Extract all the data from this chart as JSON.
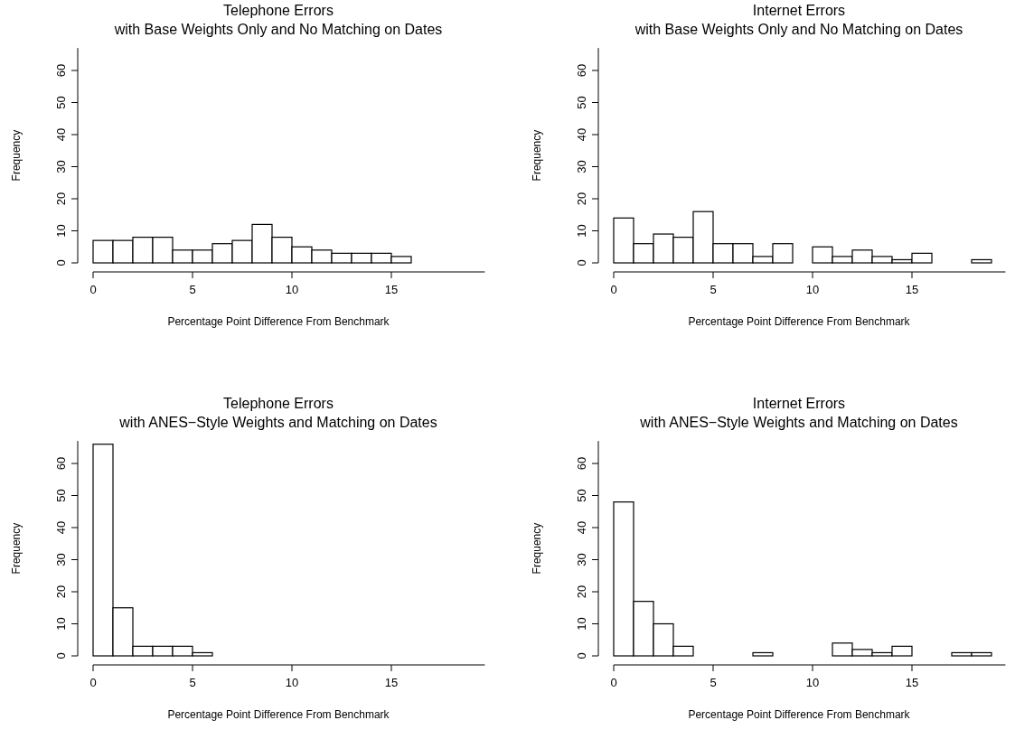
{
  "chart_data": [
    {
      "type": "histogram",
      "title": "Telephone Errors",
      "subtitle": "with Base Weights Only and No Matching on Dates",
      "xlabel": "Percentage Point Difference From Benchmark",
      "ylabel": "Frequency",
      "bins": [
        0,
        1,
        2,
        3,
        4,
        5,
        6,
        7,
        8,
        9,
        10,
        11,
        12,
        13,
        14,
        15,
        16
      ],
      "values": [
        7,
        7,
        8,
        8,
        4,
        4,
        6,
        7,
        12,
        8,
        5,
        4,
        3,
        3,
        3,
        2
      ],
      "color": "#ffffff",
      "xlim": [
        0,
        19.7
      ],
      "ylim": [
        0,
        67
      ],
      "xticks": [
        0,
        5,
        10,
        15
      ],
      "yticks": [
        0,
        10,
        20,
        30,
        40,
        50,
        60
      ]
    },
    {
      "type": "histogram",
      "title": "Internet Errors",
      "subtitle": "with Base Weights Only and No Matching on Dates",
      "xlabel": "Percentage Point Difference From Benchmark",
      "ylabel": "Frequency",
      "bins": [
        0,
        1,
        2,
        3,
        4,
        5,
        6,
        7,
        8,
        9,
        10,
        11,
        12,
        13,
        14,
        15,
        16,
        17,
        18,
        19
      ],
      "values": [
        14,
        6,
        9,
        8,
        16,
        6,
        6,
        2,
        6,
        0,
        5,
        2,
        4,
        2,
        1,
        3,
        0,
        0,
        1
      ],
      "color": "#ffffff",
      "xlim": [
        0,
        19.7
      ],
      "ylim": [
        0,
        67
      ],
      "xticks": [
        0,
        5,
        10,
        15
      ],
      "yticks": [
        0,
        10,
        20,
        30,
        40,
        50,
        60
      ]
    },
    {
      "type": "histogram",
      "title": "Telephone Errors",
      "subtitle": "with ANES−Style Weights and Matching on Dates",
      "xlabel": "Percentage Point Difference From Benchmark",
      "ylabel": "Frequency",
      "bins": [
        0,
        1,
        2,
        3,
        4,
        5,
        6
      ],
      "values": [
        66,
        15,
        3,
        3,
        3,
        1
      ],
      "color": "#ffffff",
      "xlim": [
        0,
        19.7
      ],
      "ylim": [
        0,
        67
      ],
      "xticks": [
        0,
        5,
        10,
        15
      ],
      "yticks": [
        0,
        10,
        20,
        30,
        40,
        50,
        60
      ]
    },
    {
      "type": "histogram",
      "title": "Internet Errors",
      "subtitle": "with ANES−Style Weights and Matching on Dates",
      "xlabel": "Percentage Point Difference From Benchmark",
      "ylabel": "Frequency",
      "bins": [
        0,
        1,
        2,
        3,
        4,
        5,
        6,
        7,
        8,
        9,
        10,
        11,
        12,
        13,
        14,
        15,
        16,
        17,
        18,
        19
      ],
      "values": [
        48,
        17,
        10,
        3,
        0,
        0,
        0,
        1,
        0,
        0,
        0,
        4,
        2,
        1,
        3,
        0,
        0,
        1,
        1
      ],
      "color": "#ffffff",
      "xlim": [
        0,
        19.7
      ],
      "ylim": [
        0,
        67
      ],
      "xticks": [
        0,
        5,
        10,
        15
      ],
      "yticks": [
        0,
        10,
        20,
        30,
        40,
        50,
        60
      ]
    }
  ]
}
